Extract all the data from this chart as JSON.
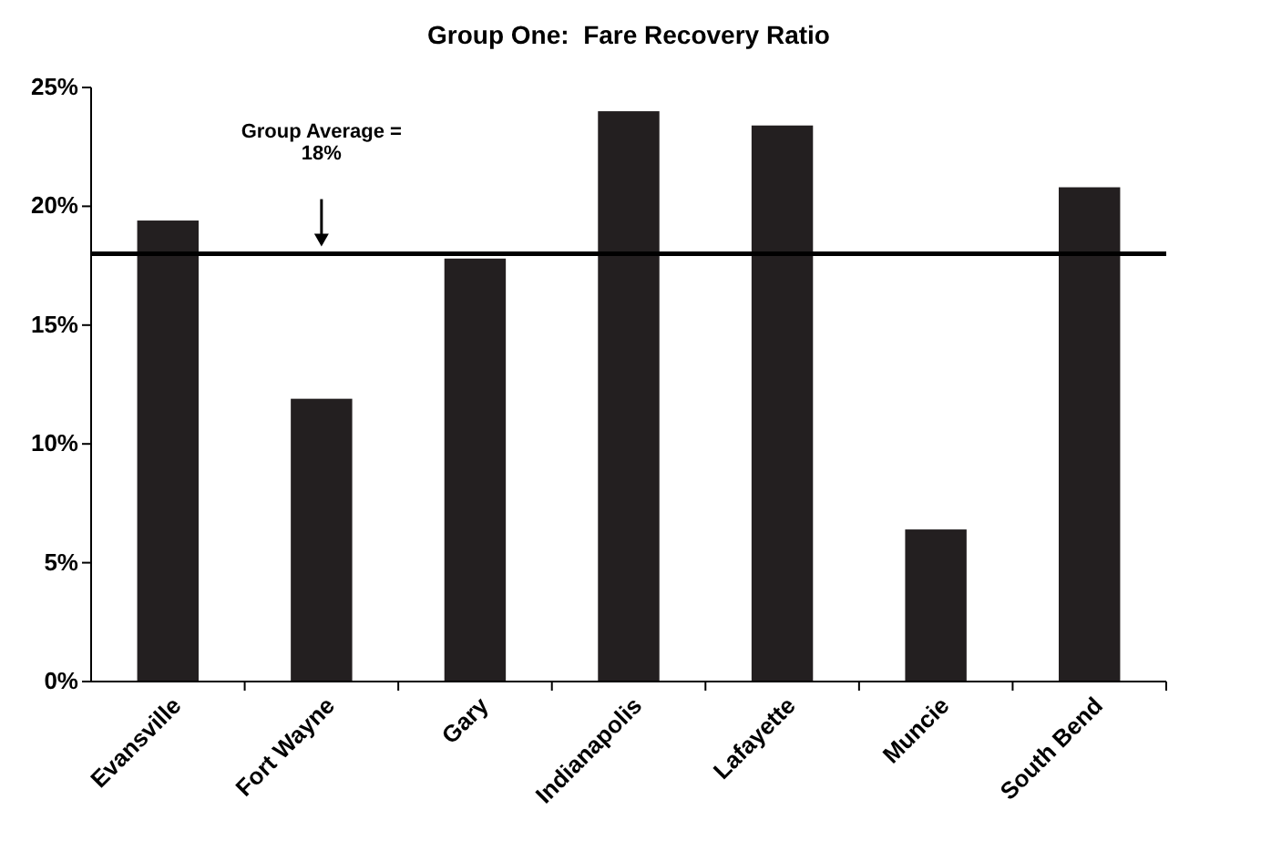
{
  "chart_data": {
    "type": "bar",
    "title": "Group One:  Fare Recovery Ratio",
    "categories": [
      "Evansville",
      "Fort Wayne",
      "Gary",
      "Indianapolis",
      "Lafayette",
      "Muncie",
      "South Bend"
    ],
    "values": [
      19.4,
      11.9,
      17.8,
      24.0,
      23.4,
      6.4,
      20.8
    ],
    "color": "#231f20",
    "ylim": [
      0,
      25
    ],
    "yticks": [
      {
        "value": 0,
        "label": "0%"
      },
      {
        "value": 5,
        "label": "5%"
      },
      {
        "value": 10,
        "label": "10%"
      },
      {
        "value": 15,
        "label": "15%"
      },
      {
        "value": 20,
        "label": "20%"
      },
      {
        "value": 25,
        "label": "25%"
      }
    ],
    "ref_lines": [
      {
        "axis": "y",
        "value": 18,
        "label": "Group Average =\n18%",
        "color": "#000000"
      }
    ],
    "grid": false
  }
}
